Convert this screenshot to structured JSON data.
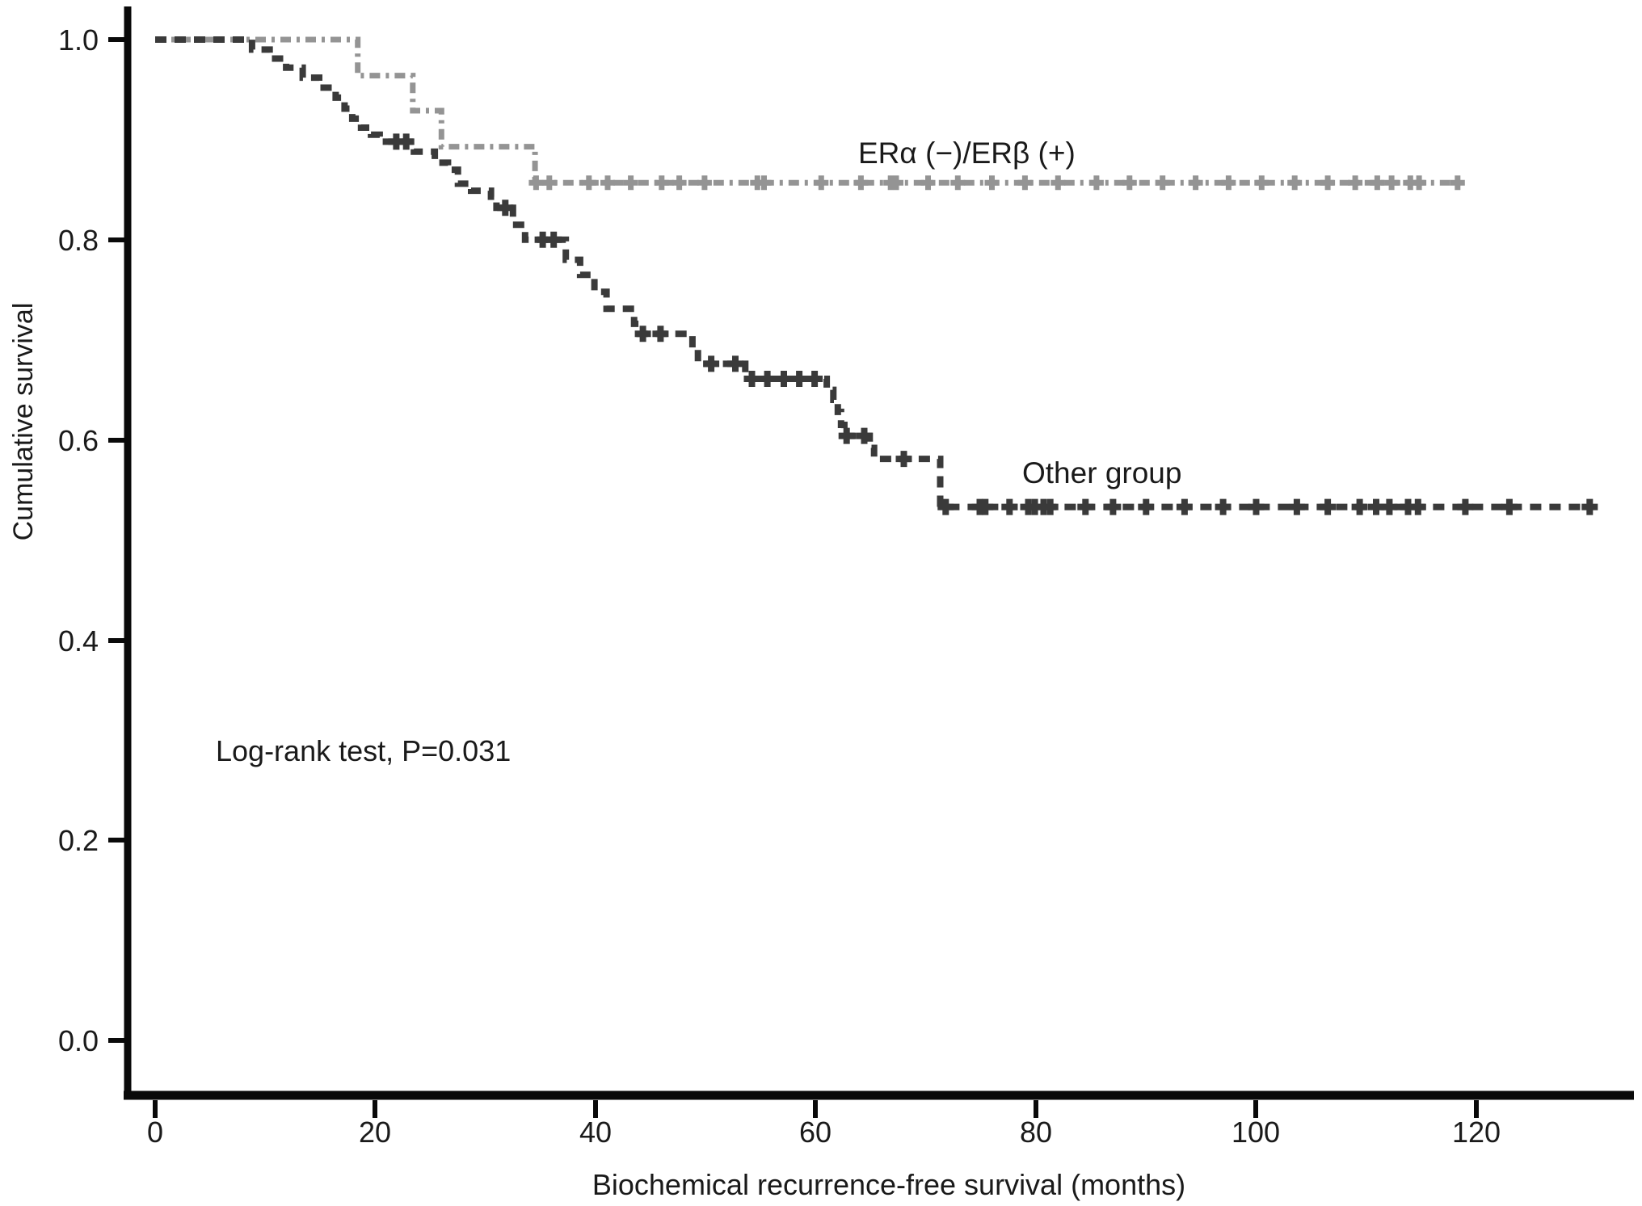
{
  "chart_data": {
    "type": "line",
    "subtype": "kaplan-meier-step",
    "title": "",
    "xlabel": "Biochemical recurrence-free survival (months)",
    "ylabel": "Cumulative survival",
    "annotation": "Log-rank test, P=0.031",
    "xlim": [
      0,
      134
    ],
    "ylim": [
      0.0,
      1.05
    ],
    "grid": false,
    "legend_position": "inline-labels-on-plot",
    "x_ticks": [
      0,
      20,
      40,
      60,
      80,
      100,
      120
    ],
    "x_tick_labels": [
      "0",
      "20",
      "40",
      "60",
      "80",
      "100",
      "120"
    ],
    "y_ticks": [
      1.0,
      0.8,
      0.6,
      0.4,
      0.2,
      0.0
    ],
    "y_tick_labels": [
      "1.0",
      "0.8",
      "0.6",
      "0.4",
      "0.2",
      "0.0"
    ],
    "colors": {
      "axis": "#0a0a0a",
      "text": "#1a1a1a"
    },
    "series": [
      {
        "name": "ER-alpha-negative-ER-beta-positive",
        "label": "ERα (−)/ERβ (+)",
        "color": "#949494",
        "dash": "13 7 4 7",
        "stroke_width": 7,
        "censor_arm": 9,
        "censor_stroke": 7,
        "steps": [
          [
            0,
            1.0
          ],
          [
            18.4,
            0.964
          ],
          [
            23.4,
            0.929
          ],
          [
            26.0,
            0.893
          ],
          [
            34.5,
            0.857
          ]
        ],
        "end_month": 118.5,
        "censors": [
          [
            34.6,
            0.857
          ],
          [
            35.8,
            0.857
          ],
          [
            39.4,
            0.857
          ],
          [
            41.1,
            0.857
          ],
          [
            43.2,
            0.857
          ],
          [
            46.0,
            0.857
          ],
          [
            47.6,
            0.857
          ],
          [
            49.9,
            0.857
          ],
          [
            54.7,
            0.857
          ],
          [
            55.3,
            0.857
          ],
          [
            60.5,
            0.857
          ],
          [
            64.1,
            0.857
          ],
          [
            66.8,
            0.857
          ],
          [
            67.3,
            0.857
          ],
          [
            70.2,
            0.857
          ],
          [
            72.9,
            0.857
          ],
          [
            76.0,
            0.857
          ],
          [
            79.0,
            0.857
          ],
          [
            82.0,
            0.857
          ],
          [
            85.5,
            0.857
          ],
          [
            88.5,
            0.857
          ],
          [
            91.5,
            0.857
          ],
          [
            94.5,
            0.857
          ],
          [
            97.5,
            0.857
          ],
          [
            100.5,
            0.857
          ],
          [
            103.5,
            0.857
          ],
          [
            106.5,
            0.857
          ],
          [
            109.0,
            0.857
          ],
          [
            111.0,
            0.857
          ],
          [
            112.3,
            0.857
          ],
          [
            114.0,
            0.857
          ],
          [
            114.8,
            0.857
          ],
          [
            118.3,
            0.857
          ]
        ]
      },
      {
        "name": "other-group",
        "label": "Other group",
        "color": "#3a3a3a",
        "dash": "14 10",
        "stroke_width": 8,
        "censor_arm": 10,
        "censor_stroke": 8,
        "steps": [
          [
            0,
            1.0
          ],
          [
            8.8,
            0.99
          ],
          [
            10.4,
            0.981
          ],
          [
            11.9,
            0.972
          ],
          [
            13.4,
            0.962
          ],
          [
            14.9,
            0.952
          ],
          [
            16.4,
            0.942
          ],
          [
            17.2,
            0.931
          ],
          [
            17.9,
            0.921
          ],
          [
            18.7,
            0.912
          ],
          [
            19.6,
            0.905
          ],
          [
            20.4,
            0.898
          ],
          [
            23.5,
            0.888
          ],
          [
            25.4,
            0.877
          ],
          [
            26.6,
            0.87
          ],
          [
            27.5,
            0.856
          ],
          [
            28.7,
            0.849
          ],
          [
            30.5,
            0.843
          ],
          [
            31.0,
            0.832
          ],
          [
            32.5,
            0.815
          ],
          [
            33.6,
            0.8
          ],
          [
            37.3,
            0.78
          ],
          [
            38.6,
            0.765
          ],
          [
            39.9,
            0.748
          ],
          [
            41.0,
            0.731
          ],
          [
            43.5,
            0.716
          ],
          [
            44.0,
            0.706
          ],
          [
            48.8,
            0.691
          ],
          [
            49.3,
            0.676
          ],
          [
            53.6,
            0.661
          ],
          [
            61.0,
            0.65
          ],
          [
            61.6,
            0.64
          ],
          [
            62.0,
            0.628
          ],
          [
            62.3,
            0.615
          ],
          [
            62.6,
            0.604
          ],
          [
            64.9,
            0.592
          ],
          [
            65.3,
            0.581
          ],
          [
            71.3,
            0.533
          ]
        ],
        "end_month": 130.4,
        "censors": [
          [
            21.9,
            0.898
          ],
          [
            22.8,
            0.898
          ],
          [
            31.8,
            0.832
          ],
          [
            35.2,
            0.8
          ],
          [
            36.2,
            0.8
          ],
          [
            44.3,
            0.706
          ],
          [
            45.9,
            0.706
          ],
          [
            50.5,
            0.676
          ],
          [
            52.7,
            0.676
          ],
          [
            54.2,
            0.661
          ],
          [
            55.6,
            0.661
          ],
          [
            57.1,
            0.661
          ],
          [
            58.5,
            0.661
          ],
          [
            59.9,
            0.661
          ],
          [
            62.8,
            0.604
          ],
          [
            64.4,
            0.604
          ],
          [
            68.0,
            0.581
          ],
          [
            71.8,
            0.533
          ],
          [
            74.9,
            0.533
          ],
          [
            75.4,
            0.533
          ],
          [
            77.6,
            0.533
          ],
          [
            79.3,
            0.533
          ],
          [
            79.9,
            0.533
          ],
          [
            80.7,
            0.533
          ],
          [
            81.3,
            0.533
          ],
          [
            84.5,
            0.533
          ],
          [
            87.0,
            0.533
          ],
          [
            90.0,
            0.533
          ],
          [
            93.5,
            0.533
          ],
          [
            97.0,
            0.533
          ],
          [
            100.0,
            0.533
          ],
          [
            103.7,
            0.533
          ],
          [
            106.5,
            0.533
          ],
          [
            109.4,
            0.533
          ],
          [
            110.9,
            0.533
          ],
          [
            112.1,
            0.533
          ],
          [
            113.8,
            0.533
          ],
          [
            114.7,
            0.533
          ],
          [
            119.0,
            0.533
          ],
          [
            123.0,
            0.533
          ],
          [
            130.3,
            0.533
          ]
        ]
      }
    ]
  }
}
